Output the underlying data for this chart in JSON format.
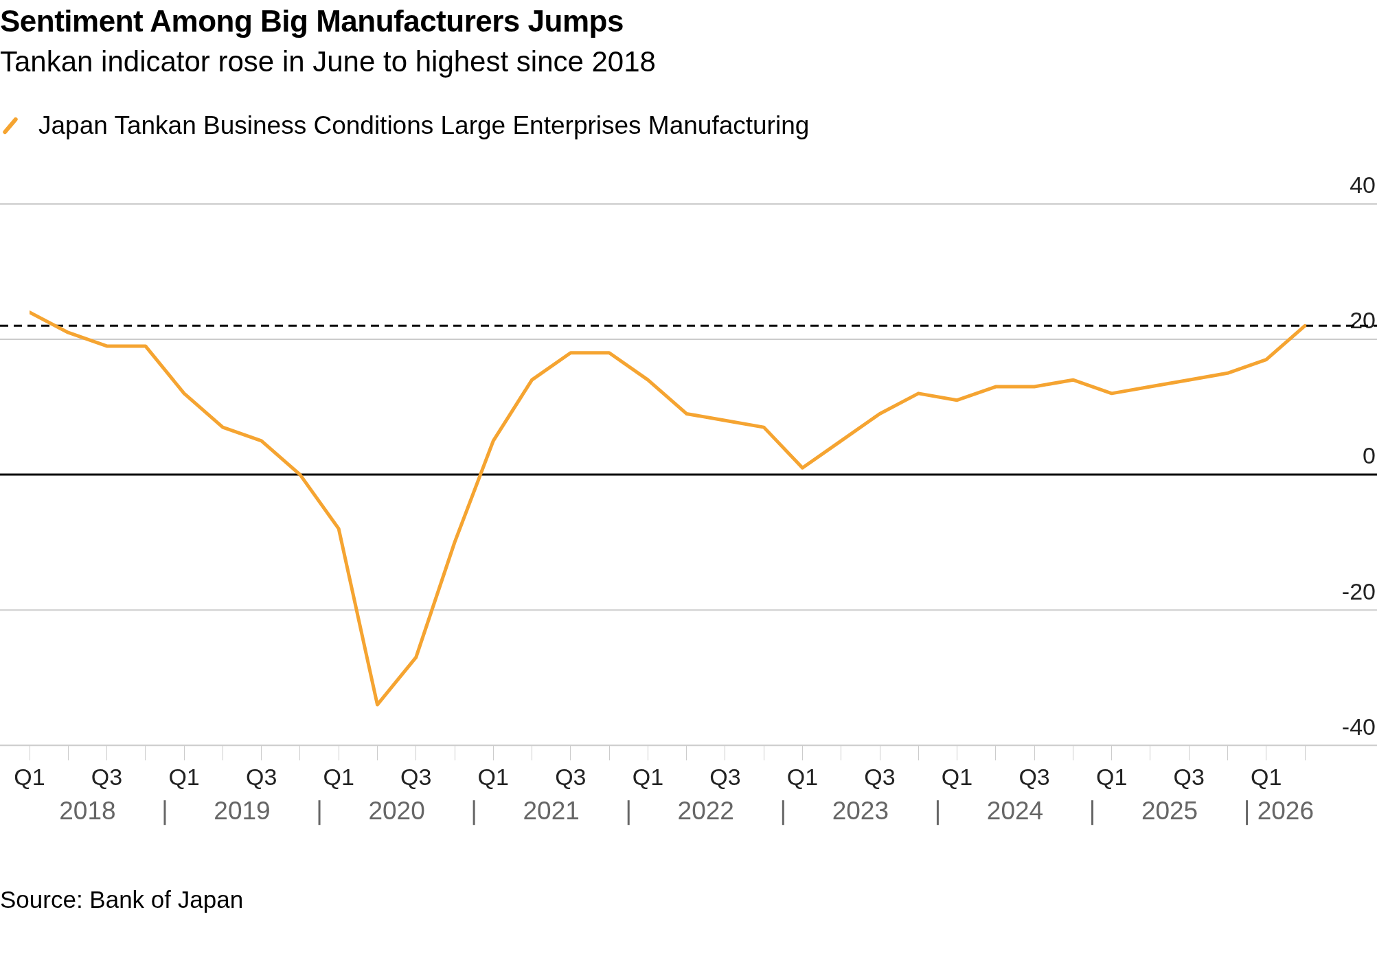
{
  "chart_data": {
    "type": "line",
    "title": "Sentiment Among Big Manufacturers Jumps",
    "subtitle": "Tankan indicator rose in June to highest since 2018",
    "categories": [
      "Q1",
      null,
      "Q3",
      null,
      "Q1",
      null,
      "Q3",
      null,
      "Q1",
      null,
      "Q3",
      null,
      "Q1",
      null,
      "Q3",
      null,
      "Q1",
      null,
      "Q3",
      null,
      "Q1",
      null,
      "Q3",
      null,
      "Q1",
      null,
      "Q3",
      null,
      "Q1",
      null,
      "Q3",
      null,
      "Q1",
      null
    ],
    "series": [
      {
        "name": "Japan Tankan Business Conditions Large Enterprises Manufacturing",
        "color": "#f5a431",
        "values": [
          24,
          21,
          19,
          19,
          12,
          7,
          5,
          0,
          -8,
          -34,
          -27,
          -10,
          5,
          14,
          18,
          18,
          14,
          9,
          8,
          7,
          1,
          5,
          9,
          12,
          11,
          13,
          13,
          14,
          12,
          13,
          14,
          15,
          17,
          22
        ]
      }
    ],
    "ylim": [
      -40,
      40
    ],
    "yticks": [
      -40,
      -20,
      0,
      20,
      40
    ],
    "grid": "y",
    "legend": "top left",
    "marker": "none",
    "line_style": "solid",
    "ref_lines": [
      {
        "axis": "y",
        "value": 0,
        "color": "#000000",
        "line_style": "solid"
      },
      {
        "axis": "y",
        "value": 22,
        "color": "#000000",
        "line_style": "dashed"
      }
    ],
    "annotations": [
      "2018",
      "2019",
      "2020",
      "2021",
      "2022",
      "2023",
      "2024",
      "2025",
      "2026",
      "Source: Bank of Japan"
    ]
  }
}
